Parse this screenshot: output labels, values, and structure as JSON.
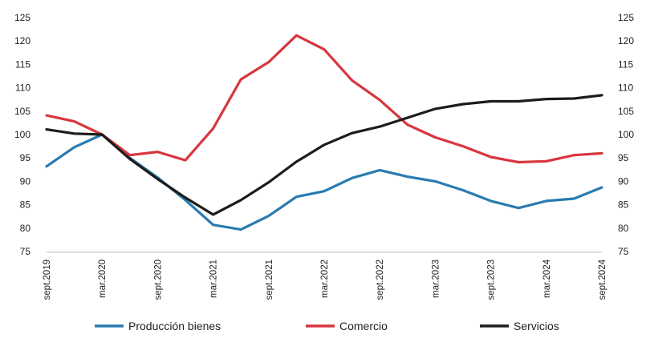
{
  "chart_data": {
    "type": "line",
    "title": "",
    "xlabel": "",
    "ylabel": "",
    "ylim": [
      75,
      125
    ],
    "yticks": [
      75,
      80,
      85,
      90,
      95,
      100,
      105,
      110,
      115,
      120,
      125
    ],
    "grid": false,
    "legend_position": "bottom",
    "dual_axis": true,
    "x": [
      "sept.2019",
      "dic.2019",
      "mar.2020",
      "jun.2020",
      "sept.2020",
      "dic.2020",
      "mar.2021",
      "jun.2021",
      "sept.2021",
      "dic.2021",
      "mar.2022",
      "jun.2022",
      "sept.2022",
      "dic.2022",
      "mar.2023",
      "jun.2023",
      "sept.2023",
      "dic.2023",
      "mar.2024",
      "jun.2024",
      "sept.2024"
    ],
    "x_tick_labels": [
      "sept.2019",
      "mar.2020",
      "sept.2020",
      "mar.2021",
      "sept.2021",
      "mar.2022",
      "sept.2022",
      "mar.2023",
      "sept.2023",
      "mar.2024",
      "sept.2024"
    ],
    "series": [
      {
        "name": "Producción bienes",
        "color": "#2a7bb0",
        "values": [
          93.2,
          97.3,
          100,
          95.0,
          90.8,
          86.0,
          80.7,
          79.7,
          82.6,
          86.7,
          87.9,
          90.7,
          92.4,
          91.0,
          90.0,
          88.1,
          85.8,
          84.3,
          85.8,
          86.3,
          88.7
        ]
      },
      {
        "name": "Comercio",
        "color": "#d8363f",
        "values": [
          104.1,
          102.8,
          100,
          95.6,
          96.3,
          94.5,
          101.3,
          111.8,
          115.5,
          121.2,
          118.2,
          111.6,
          107.4,
          102.1,
          99.4,
          97.5,
          95.2,
          94.1,
          94.3,
          95.6,
          96.0
        ]
      },
      {
        "name": "Servicios",
        "color": "#1c1c1c",
        "values": [
          101.1,
          100.2,
          100,
          94.8,
          90.5,
          86.5,
          82.9,
          86.0,
          89.8,
          94.2,
          97.8,
          100.3,
          101.7,
          103.6,
          105.5,
          106.5,
          107.1,
          107.1,
          107.6,
          107.7,
          108.4
        ]
      }
    ]
  }
}
